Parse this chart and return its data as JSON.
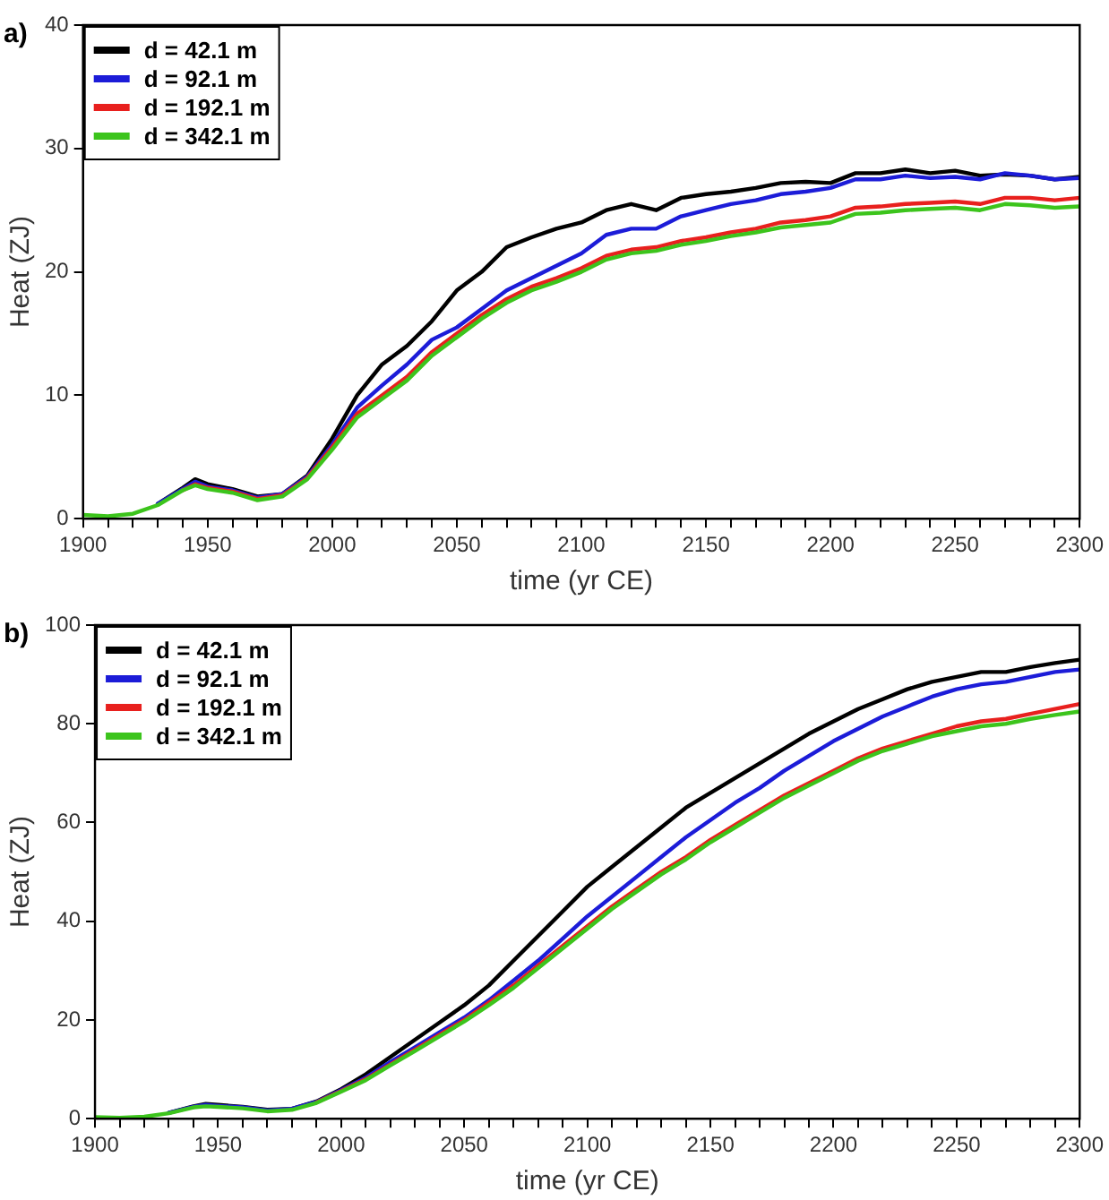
{
  "chart_data": [
    {
      "type": "line",
      "title": "a)",
      "xlabel": "time (yr CE)",
      "ylabel": "Heat (ZJ)",
      "legend": "top left",
      "grid": false,
      "marker": "none",
      "line_style": "solid",
      "xlim": [
        1900,
        2300
      ],
      "ylim": [
        0,
        40
      ],
      "xticks": [
        1900,
        {
          "value": 1910,
          "label": null
        },
        {
          "value": 1920,
          "label": null
        },
        {
          "value": 1930,
          "label": null
        },
        {
          "value": 1940,
          "label": null
        },
        1950,
        {
          "value": 1960,
          "label": null
        },
        {
          "value": 1970,
          "label": null
        },
        {
          "value": 1980,
          "label": null
        },
        {
          "value": 1990,
          "label": null
        },
        2000,
        {
          "value": 2010,
          "label": null
        },
        {
          "value": 2020,
          "label": null
        },
        {
          "value": 2030,
          "label": null
        },
        {
          "value": 2040,
          "label": null
        },
        2050,
        {
          "value": 2060,
          "label": null
        },
        {
          "value": 2070,
          "label": null
        },
        {
          "value": 2080,
          "label": null
        },
        {
          "value": 2090,
          "label": null
        },
        2100,
        {
          "value": 2110,
          "label": null
        },
        {
          "value": 2120,
          "label": null
        },
        {
          "value": 2130,
          "label": null
        },
        {
          "value": 2140,
          "label": null
        },
        2150,
        {
          "value": 2160,
          "label": null
        },
        {
          "value": 2170,
          "label": null
        },
        {
          "value": 2180,
          "label": null
        },
        {
          "value": 2190,
          "label": null
        },
        2200,
        {
          "value": 2210,
          "label": null
        },
        {
          "value": 2220,
          "label": null
        },
        {
          "value": 2230,
          "label": null
        },
        {
          "value": 2240,
          "label": null
        },
        2250,
        {
          "value": 2260,
          "label": null
        },
        {
          "value": 2270,
          "label": null
        },
        {
          "value": 2280,
          "label": null
        },
        {
          "value": 2290,
          "label": null
        },
        2300
      ],
      "yticks": [
        0,
        10,
        20,
        30,
        40
      ],
      "x": [
        1900,
        1910,
        1920,
        1930,
        1940,
        1945,
        1950,
        1960,
        1970,
        1980,
        1990,
        2000,
        2010,
        2020,
        2030,
        2040,
        2050,
        2060,
        2070,
        2080,
        2090,
        2100,
        2110,
        2120,
        2130,
        2140,
        2150,
        2160,
        2170,
        2180,
        2190,
        2200,
        2210,
        2220,
        2230,
        2240,
        2250,
        2260,
        2270,
        2280,
        2290,
        2300
      ],
      "series": [
        {
          "name": "d = 42.1 m",
          "color": "#000000",
          "values": [
            null,
            null,
            null,
            1.2,
            2.5,
            3.2,
            2.8,
            2.4,
            1.8,
            2.0,
            3.5,
            6.5,
            10,
            12.5,
            14,
            16,
            18.5,
            20,
            22,
            22.8,
            23.5,
            24,
            25,
            25.5,
            25,
            26,
            26.3,
            26.5,
            26.8,
            27.2,
            27.3,
            27.2,
            28,
            28,
            28.3,
            28,
            28.2,
            27.8,
            27.9,
            27.8,
            27.5,
            27.7
          ]
        },
        {
          "name": "d = 92.1 m",
          "color": "#1c1cd8",
          "values": [
            null,
            null,
            null,
            1.2,
            2.4,
            3.0,
            2.6,
            2.3,
            1.7,
            2.0,
            3.4,
            6,
            9,
            10.8,
            12.5,
            14.5,
            15.5,
            17,
            18.5,
            19.5,
            20.5,
            21.5,
            23,
            23.5,
            23.5,
            24.5,
            25,
            25.5,
            25.8,
            26.3,
            26.5,
            26.8,
            27.5,
            27.5,
            27.8,
            27.6,
            27.7,
            27.5,
            28,
            27.8,
            27.5,
            27.6
          ]
        },
        {
          "name": "d = 192.1 m",
          "color": "#e8201e",
          "values": [
            null,
            null,
            null,
            null,
            2.3,
            2.8,
            2.5,
            2.2,
            1.6,
            1.9,
            3.3,
            5.8,
            8.5,
            10,
            11.5,
            13.5,
            15,
            16.5,
            17.8,
            18.8,
            19.5,
            20.3,
            21.3,
            21.8,
            22,
            22.5,
            22.8,
            23.2,
            23.5,
            24,
            24.2,
            24.5,
            25.2,
            25.3,
            25.5,
            25.6,
            25.7,
            25.5,
            26,
            26,
            25.8,
            26
          ]
        },
        {
          "name": "d = 342.1 m",
          "color": "#3cc41c",
          "values": [
            0.3,
            0.2,
            0.4,
            1.1,
            2.3,
            2.7,
            2.4,
            2.1,
            1.5,
            1.8,
            3.2,
            5.6,
            8.2,
            9.7,
            11.2,
            13.2,
            14.7,
            16.2,
            17.5,
            18.5,
            19.2,
            20,
            21,
            21.5,
            21.7,
            22.2,
            22.5,
            22.9,
            23.2,
            23.6,
            23.8,
            24,
            24.7,
            24.8,
            25,
            25.1,
            25.2,
            25,
            25.5,
            25.4,
            25.2,
            25.3
          ]
        }
      ]
    },
    {
      "type": "line",
      "title": "b)",
      "xlabel": "time (yr CE)",
      "ylabel": "Heat (ZJ)",
      "legend": "top left",
      "grid": false,
      "marker": "none",
      "line_style": "solid",
      "xlim": [
        1900,
        2300
      ],
      "ylim": [
        0,
        100
      ],
      "xticks": [
        1900,
        {
          "value": 1910,
          "label": null
        },
        {
          "value": 1920,
          "label": null
        },
        {
          "value": 1930,
          "label": null
        },
        {
          "value": 1940,
          "label": null
        },
        1950,
        {
          "value": 1960,
          "label": null
        },
        {
          "value": 1970,
          "label": null
        },
        {
          "value": 1980,
          "label": null
        },
        {
          "value": 1990,
          "label": null
        },
        2000,
        {
          "value": 2010,
          "label": null
        },
        {
          "value": 2020,
          "label": null
        },
        {
          "value": 2030,
          "label": null
        },
        {
          "value": 2040,
          "label": null
        },
        2050,
        {
          "value": 2060,
          "label": null
        },
        {
          "value": 2070,
          "label": null
        },
        {
          "value": 2080,
          "label": null
        },
        {
          "value": 2090,
          "label": null
        },
        2100,
        {
          "value": 2110,
          "label": null
        },
        {
          "value": 2120,
          "label": null
        },
        {
          "value": 2130,
          "label": null
        },
        {
          "value": 2140,
          "label": null
        },
        2150,
        {
          "value": 2160,
          "label": null
        },
        {
          "value": 2170,
          "label": null
        },
        {
          "value": 2180,
          "label": null
        },
        {
          "value": 2190,
          "label": null
        },
        2200,
        {
          "value": 2210,
          "label": null
        },
        {
          "value": 2220,
          "label": null
        },
        {
          "value": 2230,
          "label": null
        },
        {
          "value": 2240,
          "label": null
        },
        2250,
        {
          "value": 2260,
          "label": null
        },
        {
          "value": 2270,
          "label": null
        },
        {
          "value": 2280,
          "label": null
        },
        {
          "value": 2290,
          "label": null
        },
        2300
      ],
      "yticks": [
        0,
        20,
        40,
        60,
        80,
        100
      ],
      "x": [
        1900,
        1910,
        1920,
        1930,
        1940,
        1945,
        1950,
        1960,
        1970,
        1980,
        1990,
        2000,
        2010,
        2020,
        2030,
        2040,
        2050,
        2060,
        2070,
        2080,
        2090,
        2100,
        2110,
        2120,
        2130,
        2140,
        2150,
        2160,
        2170,
        2180,
        2190,
        2200,
        2210,
        2220,
        2230,
        2240,
        2250,
        2260,
        2270,
        2280,
        2290,
        2300
      ],
      "series": [
        {
          "name": "d = 42.1 m",
          "color": "#000000",
          "values": [
            null,
            null,
            null,
            1.2,
            2.5,
            3,
            2.8,
            2.4,
            1.8,
            2,
            3.5,
            6,
            9,
            12.5,
            16,
            19.5,
            23,
            27,
            32,
            37,
            42,
            47,
            51,
            55,
            59,
            63,
            66,
            69,
            72,
            75,
            78,
            80.5,
            83,
            85,
            87,
            88.5,
            89.5,
            90.5,
            90.5,
            91.5,
            92.3,
            93
          ]
        },
        {
          "name": "d = 92.1 m",
          "color": "#1c1cd8",
          "values": [
            null,
            null,
            null,
            1.2,
            2.4,
            2.8,
            2.6,
            2.3,
            1.7,
            2,
            3.4,
            5.8,
            8.3,
            11.5,
            14.5,
            17.5,
            20.5,
            24,
            28,
            32,
            36.5,
            41,
            45,
            49,
            53,
            57,
            60.5,
            64,
            67,
            70.5,
            73.5,
            76.5,
            79,
            81.5,
            83.5,
            85.5,
            87,
            88,
            88.5,
            89.5,
            90.5,
            91
          ]
        },
        {
          "name": "d = 192.1 m",
          "color": "#e8201e",
          "values": [
            null,
            null,
            null,
            null,
            null,
            null,
            null,
            null,
            null,
            null,
            3.3,
            5.6,
            8,
            11,
            14,
            17,
            20,
            23.5,
            27,
            31,
            35,
            39,
            43,
            46.5,
            50,
            53,
            56.5,
            59.5,
            62.5,
            65.5,
            68,
            70.5,
            73,
            75,
            76.5,
            78,
            79.5,
            80.5,
            81,
            82,
            83,
            84
          ]
        },
        {
          "name": "d = 342.1 m",
          "color": "#3cc41c",
          "values": [
            0.3,
            0.2,
            0.4,
            1.1,
            2.3,
            2.5,
            2.4,
            2.1,
            1.5,
            1.8,
            3.2,
            5.5,
            7.8,
            10.8,
            13.7,
            16.7,
            19.7,
            23,
            26.5,
            30.5,
            34.5,
            38.5,
            42.5,
            46,
            49.5,
            52.5,
            56,
            59,
            62,
            65,
            67.5,
            70,
            72.5,
            74.5,
            76,
            77.5,
            78.5,
            79.5,
            80,
            81,
            81.8,
            82.5
          ]
        }
      ]
    }
  ]
}
